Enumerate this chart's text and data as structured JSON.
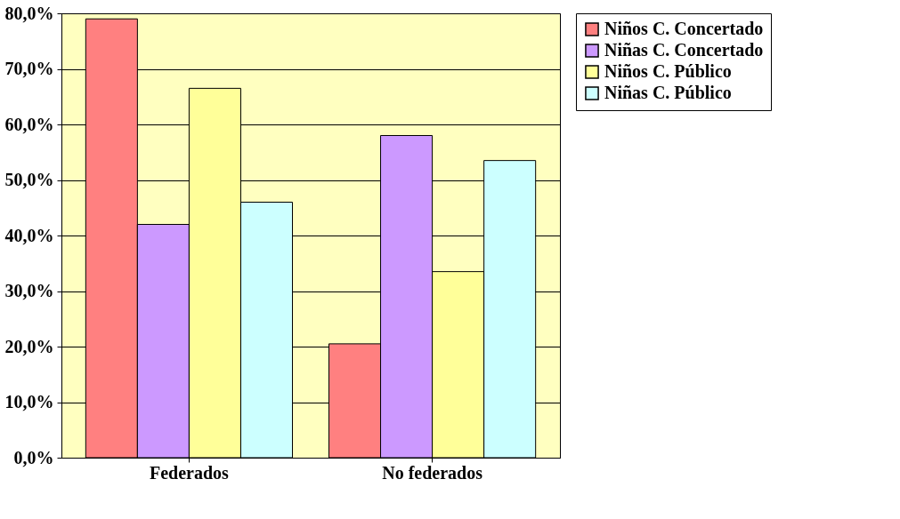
{
  "chart_data": {
    "type": "bar",
    "categories": [
      "Federados",
      "No federados"
    ],
    "series": [
      {
        "name": "Niños C. Concertado",
        "color": "#ff8080",
        "values": [
          79.0,
          20.5
        ]
      },
      {
        "name": "Niñas C. Concertado",
        "color": "#cc99ff",
        "values": [
          42.0,
          58.0
        ]
      },
      {
        "name": "Niños C. Público",
        "color": "#ffff99",
        "values": [
          66.5,
          33.5
        ]
      },
      {
        "name": "Niñas C. Público",
        "color": "#ccffff",
        "values": [
          46.0,
          53.5
        ]
      }
    ],
    "ylim": [
      0,
      80
    ],
    "yticks": [
      {
        "value": 0,
        "label": "0,0%"
      },
      {
        "value": 10,
        "label": "10,0%"
      },
      {
        "value": 20,
        "label": "20,0%"
      },
      {
        "value": 30,
        "label": "30,0%"
      },
      {
        "value": 40,
        "label": "40,0%"
      },
      {
        "value": 50,
        "label": "50,0%"
      },
      {
        "value": 60,
        "label": "60,0%"
      },
      {
        "value": 70,
        "label": "70,0%"
      },
      {
        "value": 80,
        "label": "80,0%"
      }
    ],
    "grid": "y",
    "legend": "right"
  }
}
